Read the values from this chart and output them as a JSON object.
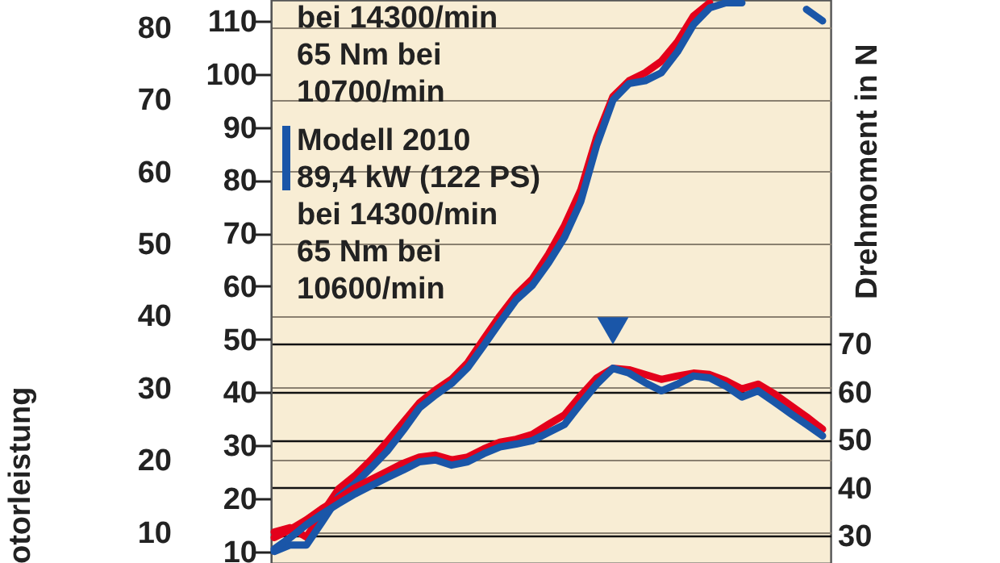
{
  "chart_data": {
    "type": "line",
    "ylabel": "otorleistung",
    "y2label": "Drehmoment in N",
    "categories": [
      null,
      null,
      null,
      null,
      null,
      null,
      null,
      null,
      null,
      null,
      null,
      null,
      null,
      null,
      null,
      null,
      null,
      null,
      null,
      null,
      null,
      null,
      null,
      null,
      null,
      null,
      null,
      null,
      null,
      null,
      null,
      null,
      null,
      null,
      null
    ],
    "series": [
      {
        "color": "#e3001b",
        "values": [
          10.0,
          10.6,
          9.3,
          12.7,
          16.0,
          17.8,
          20.0,
          22.5,
          25.2,
          27.9,
          29.7,
          31.2,
          33.5,
          36.8,
          40.0,
          42.9,
          45.1,
          48.5,
          52.5,
          57.4,
          64.8,
          70.4,
          72.6,
          73.7,
          75.3,
          78.0,
          81.6,
          83.4,
          null,
          null,
          null,
          null,
          null,
          null,
          null
        ]
      },
      {
        "name": "Modell 2010",
        "color": "#1a56a8",
        "values": [
          7.3,
          8.2,
          8.2,
          11.5,
          14.9,
          16.7,
          18.9,
          21.2,
          24.1,
          27.2,
          29.0,
          30.6,
          32.8,
          35.9,
          39.1,
          42.2,
          44.2,
          47.3,
          50.9,
          55.8,
          63.7,
          69.9,
          72.2,
          72.6,
          73.7,
          76.6,
          80.4,
          82.7,
          83.4,
          83.4,
          null,
          null,
          null,
          82.5,
          80.9
        ]
      },
      {
        "color": "#e3001b",
        "axis": "y2",
        "values": [
          29.6,
          31.3,
          33.3,
          35.7,
          37.7,
          40.0,
          41.7,
          43.4,
          45.1,
          46.4,
          46.8,
          45.8,
          46.4,
          48.1,
          49.5,
          50.1,
          51.1,
          53.2,
          55.2,
          59.2,
          62.9,
          64.9,
          64.6,
          63.6,
          62.6,
          63.3,
          63.9,
          63.6,
          62.3,
          60.6,
          61.6,
          59.6,
          57.2,
          54.8,
          52.2
        ]
      },
      {
        "color": "#1a56a8",
        "axis": "y2",
        "values": [
          27.2,
          29.6,
          32.3,
          34.6,
          36.7,
          38.7,
          40.4,
          42.1,
          43.7,
          45.4,
          45.8,
          44.7,
          45.4,
          47.1,
          48.5,
          49.1,
          49.8,
          51.5,
          53.2,
          57.5,
          61.6,
          64.9,
          63.9,
          61.9,
          60.2,
          61.6,
          63.3,
          62.9,
          61.2,
          58.9,
          60.2,
          57.9,
          55.5,
          53.2,
          50.8
        ]
      },
      {
        "type": "scatter",
        "marker": "triangle",
        "color": "#1a56a8",
        "axis": "y2",
        "values": [
          null,
          null,
          null,
          null,
          null,
          null,
          null,
          null,
          null,
          null,
          null,
          null,
          null,
          null,
          null,
          null,
          null,
          null,
          null,
          null,
          null,
          72.7,
          null,
          null,
          null,
          null,
          null,
          null,
          null,
          null,
          null,
          null,
          null,
          null,
          null
        ]
      }
    ],
    "ylim": [
      5.7,
      83.8
    ],
    "yticks": [
      10,
      20,
      30,
      40,
      50,
      60,
      70,
      80
    ],
    "y3lim": [
      7.8,
      114
    ],
    "y3ticks": [
      10,
      20,
      30,
      40,
      50,
      60,
      70,
      80,
      90,
      100,
      110
    ],
    "y2lim": [
      24.3,
      141.7
    ],
    "y2ticks": [
      30,
      40,
      50,
      60,
      70
    ],
    "grid": "y",
    "tick_labels": "y",
    "legend": "top left",
    "line_style": "solid",
    "annotations": [
      "bei 14300/min",
      "65 Nm bei",
      "10700/min",
      "89,4 kW (122 PS)",
      "bei 14300/min",
      "65 Nm bei",
      "10600/min"
    ]
  }
}
